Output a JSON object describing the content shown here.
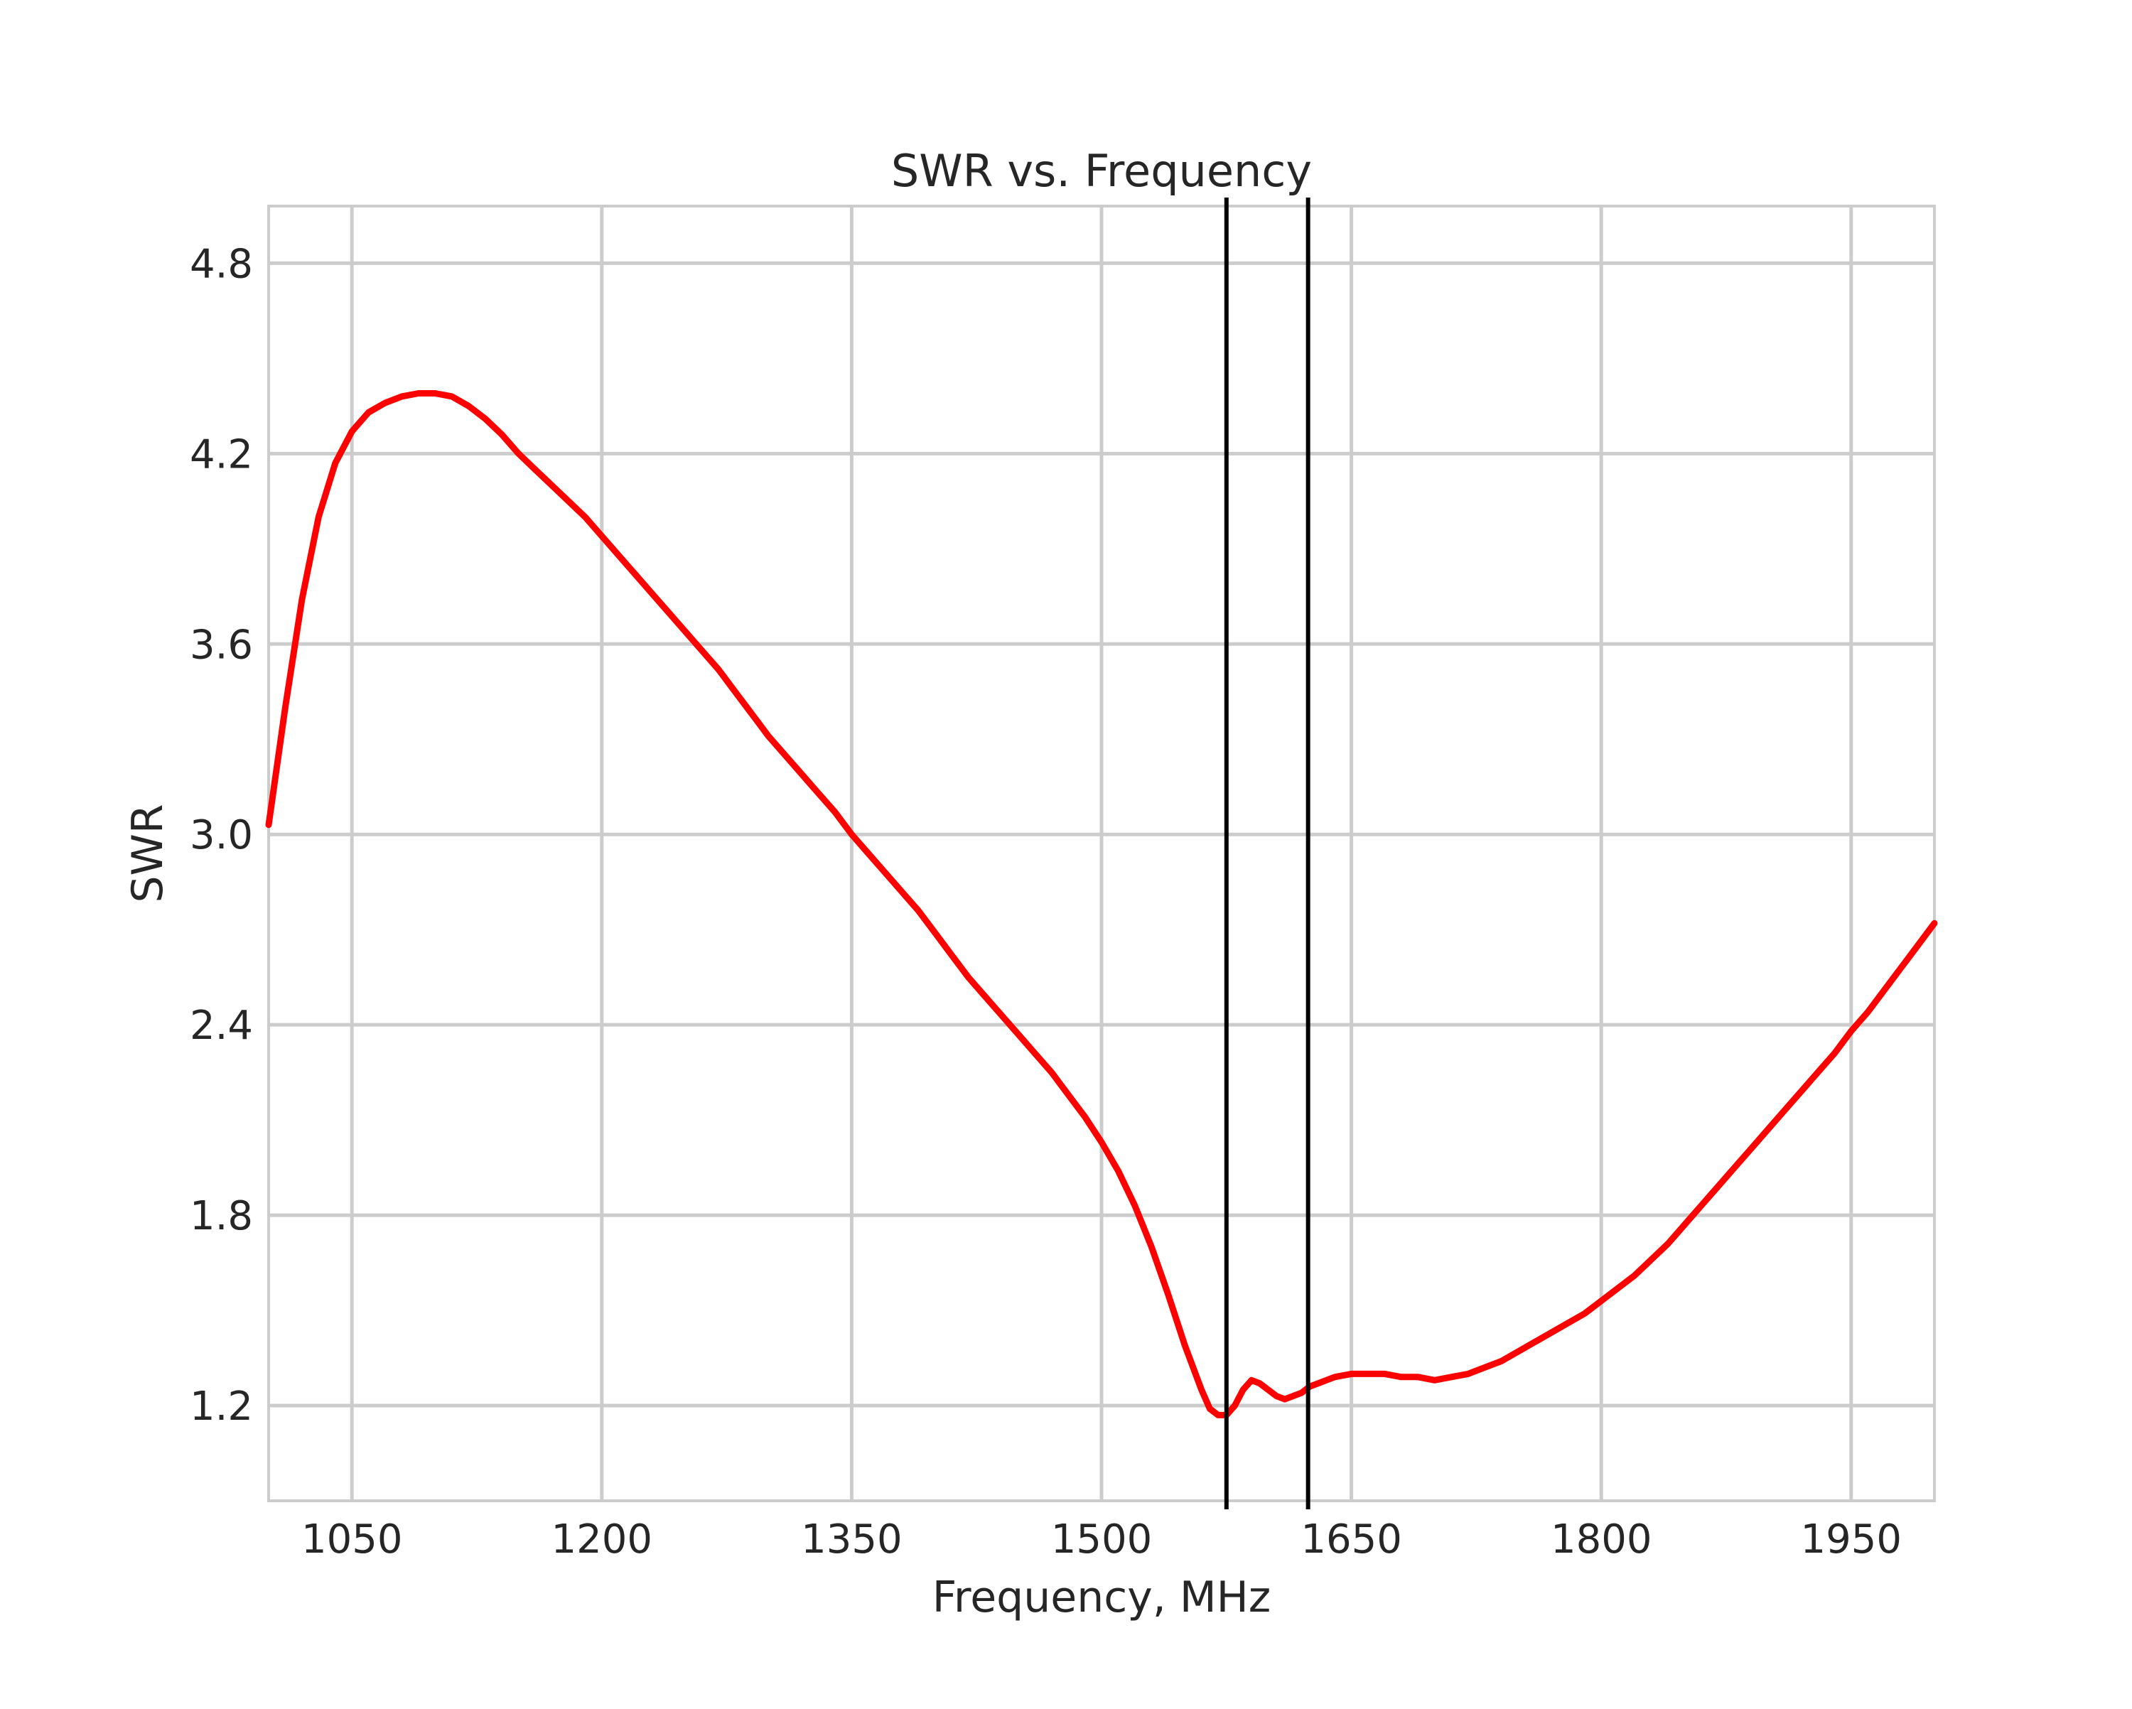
{
  "chart_data": {
    "type": "line",
    "title": "SWR vs. Frequency",
    "xlabel": "Frequency, MHz",
    "ylabel": "SWR",
    "xlim": [
      1000,
      2000
    ],
    "ylim": [
      0.9,
      4.98
    ],
    "grid": true,
    "legend": "none",
    "x_ticks": [
      1050,
      1200,
      1350,
      1500,
      1650,
      1800,
      1950
    ],
    "y_ticks": [
      1.2,
      1.8,
      2.4,
      3.0,
      3.6,
      4.2,
      4.8
    ],
    "x_tick_labels": [
      "1050",
      "1200",
      "1350",
      "1500",
      "1650",
      "1800",
      "1950"
    ],
    "y_tick_labels": [
      "1.2",
      "1.8",
      "2.4",
      "3.0",
      "3.6",
      "4.2",
      "4.8"
    ],
    "vertical_lines": [
      1575,
      1624
    ],
    "colors": {
      "series": "#ff0000",
      "vlines": "#000000",
      "grid": "#cccccc",
      "text": "#262626"
    },
    "series": [
      {
        "x": [
          1000,
          1010,
          1020,
          1030,
          1040,
          1050,
          1060,
          1070,
          1080,
          1090,
          1100,
          1110,
          1120,
          1130,
          1140,
          1150,
          1160,
          1170,
          1180,
          1190,
          1200,
          1210,
          1220,
          1230,
          1240,
          1250,
          1260,
          1270,
          1280,
          1290,
          1300,
          1310,
          1320,
          1330,
          1340,
          1350,
          1360,
          1370,
          1380,
          1390,
          1400,
          1410,
          1420,
          1430,
          1440,
          1450,
          1460,
          1470,
          1480,
          1490,
          1500,
          1510,
          1520,
          1530,
          1540,
          1550,
          1560,
          1565,
          1570,
          1575,
          1580,
          1585,
          1590,
          1595,
          1600,
          1605,
          1610,
          1615,
          1620,
          1625,
          1630,
          1640,
          1650,
          1660,
          1670,
          1680,
          1690,
          1700,
          1710,
          1720,
          1730,
          1740,
          1750,
          1760,
          1770,
          1780,
          1790,
          1800,
          1810,
          1820,
          1830,
          1840,
          1850,
          1860,
          1870,
          1880,
          1890,
          1900,
          1910,
          1920,
          1930,
          1940,
          1950,
          1960,
          1970,
          1980,
          1990,
          2000
        ],
        "y": [
          3.03,
          3.4,
          3.74,
          4.0,
          4.17,
          4.27,
          4.33,
          4.36,
          4.38,
          4.39,
          4.39,
          4.38,
          4.35,
          4.31,
          4.26,
          4.2,
          4.15,
          4.1,
          4.05,
          4.0,
          3.94,
          3.88,
          3.82,
          3.76,
          3.7,
          3.64,
          3.58,
          3.52,
          3.45,
          3.38,
          3.31,
          3.25,
          3.19,
          3.13,
          3.07,
          3.0,
          2.94,
          2.88,
          2.82,
          2.76,
          2.69,
          2.62,
          2.55,
          2.49,
          2.43,
          2.37,
          2.31,
          2.25,
          2.18,
          2.11,
          2.03,
          1.94,
          1.83,
          1.7,
          1.55,
          1.39,
          1.25,
          1.19,
          1.17,
          1.17,
          1.2,
          1.25,
          1.28,
          1.27,
          1.25,
          1.23,
          1.22,
          1.23,
          1.24,
          1.26,
          1.27,
          1.29,
          1.3,
          1.3,
          1.3,
          1.29,
          1.29,
          1.28,
          1.29,
          1.3,
          1.32,
          1.34,
          1.37,
          1.4,
          1.43,
          1.46,
          1.49,
          1.53,
          1.57,
          1.61,
          1.66,
          1.71,
          1.77,
          1.83,
          1.89,
          1.95,
          2.01,
          2.07,
          2.13,
          2.19,
          2.25,
          2.31,
          2.38,
          2.44,
          2.51,
          2.58,
          2.65,
          2.72
        ]
      }
    ]
  }
}
